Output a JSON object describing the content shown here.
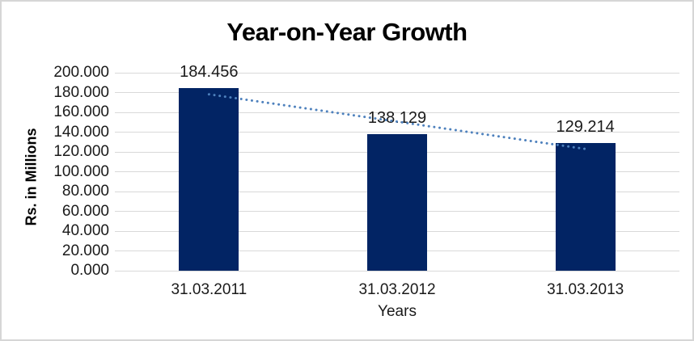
{
  "chart_data": {
    "type": "bar",
    "title": "Year-on-Year Growth",
    "categories": [
      "31.03.2011",
      "31.03.2012",
      "31.03.2013"
    ],
    "values": [
      184.456,
      138.129,
      129.214
    ],
    "data_labels": [
      "184.456",
      "138.129",
      "129.214"
    ],
    "xlabel": "Years",
    "ylabel": "Rs. in Millions",
    "ylim": [
      0,
      200
    ],
    "ytick_step": 20,
    "ytick_labels": [
      "200.000",
      "180.000",
      "160.000",
      "140.000",
      "120.000",
      "100.000",
      "80.000",
      "60.000",
      "40.000",
      "20.000",
      "0.000"
    ],
    "grid": true,
    "legend": false,
    "colors": {
      "bar": "#022464",
      "gridline": "#d9d9d9",
      "trendline": "#4e81bd",
      "text": "#1a1a1a",
      "title": "#000000",
      "frame_border": "#d6d6d6"
    },
    "trendline": {
      "type": "linear",
      "style": "dotted",
      "color": "#4e81bd",
      "start_value": 178.2,
      "end_value": 123.0
    }
  }
}
